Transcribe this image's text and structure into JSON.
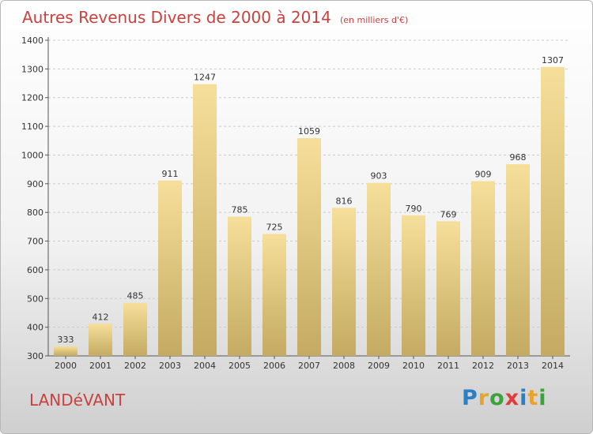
{
  "chart_data": {
    "type": "bar",
    "title": "Autres Revenus Divers de 2000 à 2014",
    "subtitle": "(en milliers d'€)",
    "categories": [
      "2000",
      "2001",
      "2002",
      "2003",
      "2004",
      "2005",
      "2006",
      "2007",
      "2008",
      "2009",
      "2010",
      "2011",
      "2012",
      "2013",
      "2014"
    ],
    "values": [
      333,
      412,
      485,
      911,
      1247,
      785,
      725,
      1059,
      816,
      903,
      790,
      769,
      909,
      968,
      1307
    ],
    "ylim": [
      300,
      1400
    ],
    "yticks": [
      "300",
      "400",
      "500",
      "600",
      "700",
      "800",
      "900",
      "1000",
      "1100",
      "1200",
      "1300",
      "1400"
    ],
    "grid": true,
    "colors": {
      "bar_top": "#f6df9a",
      "bar_bottom": "#c4aa62",
      "grid": "#cccccc",
      "accent": "#c8423f"
    }
  },
  "footer": {
    "commune": "LANDéVANT",
    "logo_letters": [
      {
        "ch": "P",
        "color": "#2b7fc4"
      },
      {
        "ch": "r",
        "color": "#e8a42a"
      },
      {
        "ch": "o",
        "color": "#3aa33a"
      },
      {
        "ch": "x",
        "color": "#e03c3c"
      },
      {
        "ch": "i",
        "color": "#2b7fc4"
      },
      {
        "ch": "t",
        "color": "#e8a42a"
      },
      {
        "ch": "i",
        "color": "#3aa33a"
      }
    ]
  }
}
